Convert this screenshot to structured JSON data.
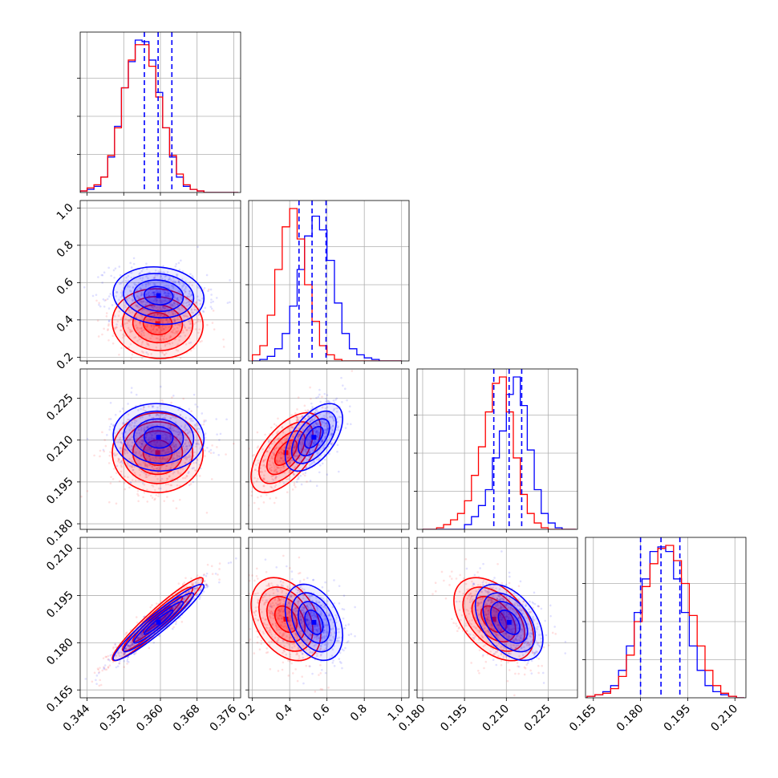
{
  "figure": {
    "type": "corner-plot",
    "colors": {
      "series_a": "#0000ff",
      "series_b": "#ff0000",
      "grid": "#b0b0b0"
    },
    "grid": true
  },
  "chart_data": {
    "type": "scatter",
    "parameters": [
      {
        "range": [
          0.3425,
          0.3775
        ],
        "ticks": [
          0.344,
          0.352,
          0.36,
          0.368,
          0.376
        ],
        "tick_labels": [
          "0.344",
          "0.352",
          "0.360",
          "0.368",
          "0.376"
        ]
      },
      {
        "range": [
          0.18,
          1.04
        ],
        "ticks": [
          0.2,
          0.4,
          0.6,
          0.8,
          1.0
        ],
        "tick_labels": [
          "0.2",
          "0.4",
          "0.6",
          "0.8",
          "1.0"
        ]
      },
      {
        "range": [
          0.178,
          0.2355
        ],
        "ticks": [
          0.18,
          0.195,
          0.21,
          0.225
        ],
        "tick_labels": [
          "0.180",
          "0.195",
          "0.210",
          "0.225"
        ]
      },
      {
        "range": [
          0.1625,
          0.2135
        ],
        "ticks": [
          0.165,
          0.18,
          0.195,
          0.21
        ],
        "tick_labels": [
          "0.165",
          "0.180",
          "0.195",
          "0.210"
        ]
      }
    ],
    "row_label_overrides": {
      "2": {
        "0.180": "0.180"
      },
      "3": {
        "0.210": "0.210"
      }
    },
    "series": [
      {
        "color": "#0000ff",
        "mean": [
          0.3596,
          0.53,
          0.211,
          0.1865
        ],
        "sd": [
          0.0045,
          0.07,
          0.0055,
          0.0055
        ]
      },
      {
        "color": "#ff0000",
        "mean": [
          0.3594,
          0.38,
          0.2055,
          0.1875
        ],
        "sd": [
          0.0045,
          0.085,
          0.0065,
          0.006
        ]
      }
    ],
    "correlations": [
      {
        "pair": [
          1,
          0
        ],
        "series_a": -0.1,
        "series_b": -0.05
      },
      {
        "pair": [
          2,
          0
        ],
        "series_a": -0.05,
        "series_b": 0.0
      },
      {
        "pair": [
          2,
          1
        ],
        "series_a": 0.55,
        "series_b": 0.6
      },
      {
        "pair": [
          3,
          0
        ],
        "series_a": 0.95,
        "series_b": 0.95
      },
      {
        "pair": [
          3,
          1
        ],
        "series_a": -0.35,
        "series_b": -0.35
      },
      {
        "pair": [
          3,
          2
        ],
        "series_a": -0.45,
        "series_b": -0.45
      }
    ],
    "quantile_lines": {
      "color": "#0000ff",
      "style": "dashed",
      "x": [
        [
          0.3565,
          0.3595,
          0.3625
        ],
        [
          0.45,
          0.52,
          0.595
        ],
        [
          0.2055,
          0.211,
          0.2155
        ],
        [
          0.18,
          0.1865,
          0.1925
        ]
      ]
    },
    "diagonal_histograms": [
      {
        "edges": [
          0.3425,
          0.344,
          0.3455,
          0.347,
          0.3485,
          0.35,
          0.3515,
          0.353,
          0.3545,
          0.356,
          0.3575,
          0.359,
          0.3605,
          0.362,
          0.3635,
          0.365,
          0.3665,
          0.368,
          0.3695,
          0.371,
          0.3725,
          0.374,
          0.3755,
          0.377
        ],
        "series_a": [
          1,
          2,
          4,
          10,
          23,
          43,
          68,
          85,
          99,
          98,
          86,
          65,
          42,
          23,
          10,
          4,
          2,
          1,
          0,
          0,
          0,
          0,
          0
        ],
        "series_b": [
          1,
          3,
          5,
          10,
          24,
          42,
          68,
          86,
          96,
          96,
          82,
          62,
          42,
          24,
          12,
          5,
          2,
          1,
          0,
          0,
          0,
          0,
          0
        ]
      },
      {
        "edges": [
          0.2,
          0.24,
          0.28,
          0.32,
          0.36,
          0.4,
          0.44,
          0.48,
          0.52,
          0.56,
          0.6,
          0.64,
          0.68,
          0.72,
          0.76,
          0.8,
          0.84,
          0.88,
          0.92,
          0.96,
          1.0
        ],
        "series_a": [
          0,
          1,
          3,
          8,
          18,
          36,
          60,
          82,
          95,
          86,
          66,
          38,
          18,
          8,
          4,
          2,
          1,
          0,
          0,
          0
        ],
        "series_b": [
          4,
          10,
          30,
          60,
          88,
          100,
          80,
          50,
          26,
          10,
          4,
          1,
          0,
          0,
          0,
          0,
          0,
          0,
          0,
          0
        ]
      },
      {
        "edges": [
          0.18,
          0.1825,
          0.185,
          0.1875,
          0.19,
          0.1925,
          0.195,
          0.1975,
          0.2,
          0.2025,
          0.205,
          0.2075,
          0.21,
          0.2125,
          0.215,
          0.2175,
          0.22,
          0.2225,
          0.225,
          0.2275,
          0.23,
          0.2325,
          0.235
        ],
        "series_a": [
          0,
          0,
          0,
          0,
          0,
          0,
          3,
          8,
          15,
          25,
          45,
          62,
          85,
          96,
          78,
          50,
          25,
          10,
          4,
          1,
          0,
          0
        ],
        "series_b": [
          0,
          0,
          1,
          3,
          6,
          10,
          18,
          34,
          52,
          74,
          92,
          96,
          74,
          45,
          22,
          10,
          4,
          1,
          0,
          0,
          0,
          0
        ]
      },
      {
        "edges": [
          0.163,
          0.1655,
          0.168,
          0.1705,
          0.173,
          0.1755,
          0.178,
          0.1805,
          0.183,
          0.1855,
          0.188,
          0.1905,
          0.193,
          0.1955,
          0.198,
          0.2005,
          0.203,
          0.2055,
          0.208,
          0.2105,
          0.213
        ],
        "series_a": [
          1,
          2,
          4,
          8,
          18,
          34,
          56,
          78,
          96,
          99,
          96,
          78,
          56,
          34,
          18,
          8,
          4,
          2,
          1,
          0
        ],
        "series_b": [
          1,
          2,
          3,
          6,
          14,
          28,
          50,
          73,
          88,
          98,
          100,
          90,
          75,
          54,
          34,
          18,
          8,
          3,
          1,
          0
        ]
      }
    ]
  }
}
